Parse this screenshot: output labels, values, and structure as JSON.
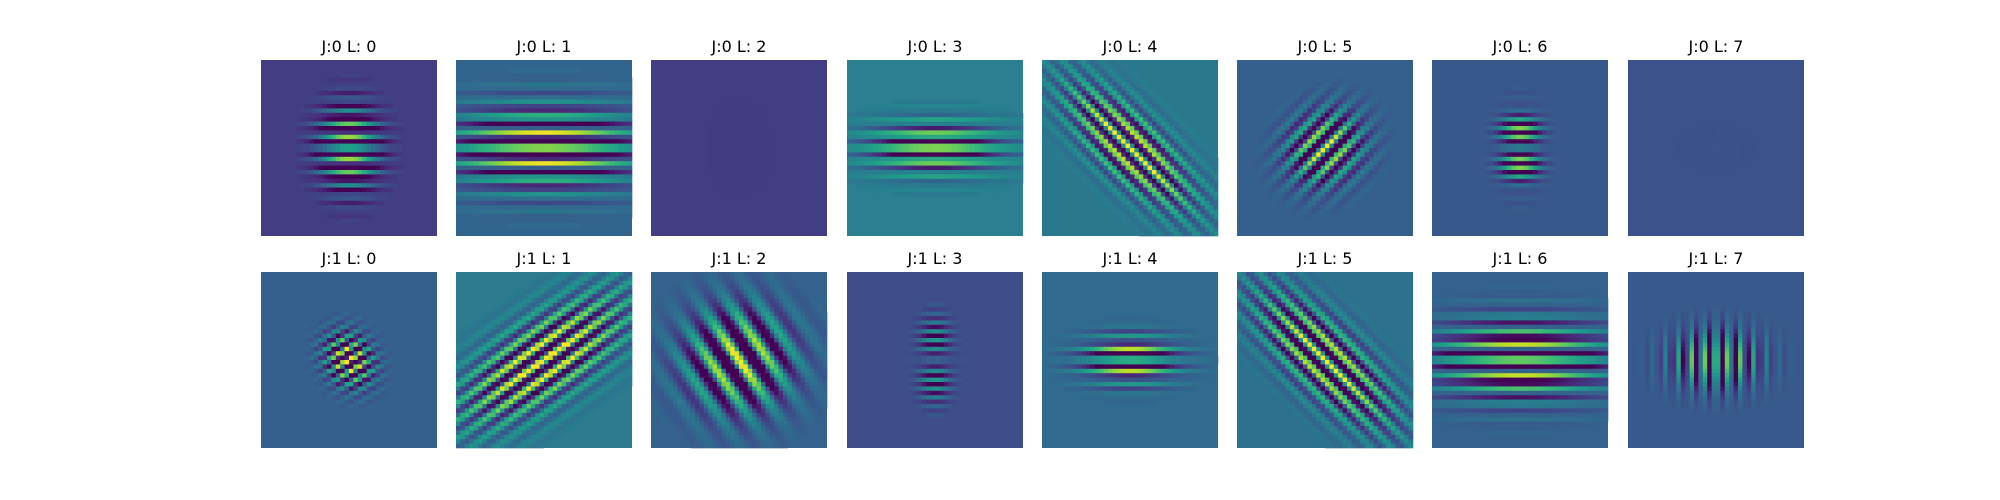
{
  "chart_data": {
    "type": "image-grid",
    "colormap": "viridis",
    "axes_visible": false,
    "grid": false,
    "rows": 2,
    "cols": 8,
    "panels": [
      {
        "title": "J:0 L: 0",
        "bg": "#433d84",
        "kernel": {
          "orientation_deg": 0,
          "sigma_along": 2.2,
          "sigma_across": 3.0,
          "frequency": 0.36,
          "amp": 1.2
        }
      },
      {
        "title": "J:0 L: 1",
        "bg": "#31658e",
        "kernel": {
          "orientation_deg": 0,
          "sigma_along": 7.0,
          "sigma_across": 3.2,
          "frequency": 0.28,
          "amp": 1.0
        }
      },
      {
        "title": "J:0 L: 2",
        "bg": "#433d84",
        "kernel": {
          "orientation_deg": 0,
          "sigma_along": 1.3,
          "sigma_across": 2.0,
          "frequency": 0.5,
          "amp": 1.3
        }
      },
      {
        "title": "J:0 L: 3",
        "bg": "#2c7f8e",
        "kernel": {
          "orientation_deg": 0,
          "sigma_along": 5.0,
          "sigma_across": 2.0,
          "frequency": 0.32,
          "amp": 0.95
        }
      },
      {
        "title": "J:0 L: 4",
        "bg": "#2a788e",
        "kernel": {
          "orientation_deg": -45,
          "sigma_along": 6.5,
          "sigma_across": 2.4,
          "frequency": 0.32,
          "amp": 0.95
        }
      },
      {
        "title": "J:0 L: 5",
        "bg": "#355f8d",
        "kernel": {
          "orientation_deg": 45,
          "sigma_along": 3.0,
          "sigma_across": 2.6,
          "frequency": 0.3,
          "amp": 1.0
        }
      },
      {
        "title": "J:0 L: 6",
        "bg": "#38588c",
        "kernel": {
          "orientation_deg": 0,
          "sigma_along": 1.5,
          "sigma_across": 2.5,
          "frequency": 0.45,
          "amp": 1.1
        }
      },
      {
        "title": "J:0 L: 7",
        "bg": "#3b528b",
        "kernel": {
          "orientation_deg": 90,
          "sigma_along": 1.0,
          "sigma_across": 1.6,
          "frequency": 0.5,
          "amp": 1.3
        }
      },
      {
        "title": "J:1 L: 0",
        "bg": "#35608d",
        "kernel": {
          "orientation_deg": 30,
          "sigma_along": 1.7,
          "sigma_across": 2.1,
          "frequency": 0.42,
          "amp": 1.2
        }
      },
      {
        "title": "J:1 L: 1",
        "bg": "#2c7c8e",
        "kernel": {
          "orientation_deg": 35,
          "sigma_along": 7.5,
          "sigma_across": 3.0,
          "frequency": 0.3,
          "amp": 1.0
        }
      },
      {
        "title": "J:1 L: 2",
        "bg": "#34618d",
        "kernel": {
          "orientation_deg": -55,
          "sigma_along": 4.0,
          "sigma_across": 4.0,
          "frequency": 0.18,
          "amp": 1.0
        }
      },
      {
        "title": "J:1 L: 3",
        "bg": "#3d4e8a",
        "kernel": {
          "orientation_deg": 0,
          "sigma_along": 1.2,
          "sigma_across": 2.4,
          "frequency": 0.48,
          "amp": 1.2
        }
      },
      {
        "title": "J:1 L: 4",
        "bg": "#306a8e",
        "kernel": {
          "orientation_deg": 0,
          "sigma_along": 3.5,
          "sigma_across": 1.8,
          "frequency": 0.38,
          "amp": 1.0
        }
      },
      {
        "title": "J:1 L: 5",
        "bg": "#2d718e",
        "kernel": {
          "orientation_deg": -45,
          "sigma_along": 7.0,
          "sigma_across": 2.6,
          "frequency": 0.3,
          "amp": 0.95
        }
      },
      {
        "title": "J:1 L: 6",
        "bg": "#34618d",
        "kernel": {
          "orientation_deg": 0,
          "sigma_along": 6.5,
          "sigma_across": 3.0,
          "frequency": 0.3,
          "amp": 1.0
        }
      },
      {
        "title": "J:1 L: 7",
        "bg": "#37598c",
        "kernel": {
          "orientation_deg": 90,
          "sigma_along": 2.2,
          "sigma_across": 3.3,
          "frequency": 0.35,
          "amp": 1.0
        }
      }
    ]
  }
}
